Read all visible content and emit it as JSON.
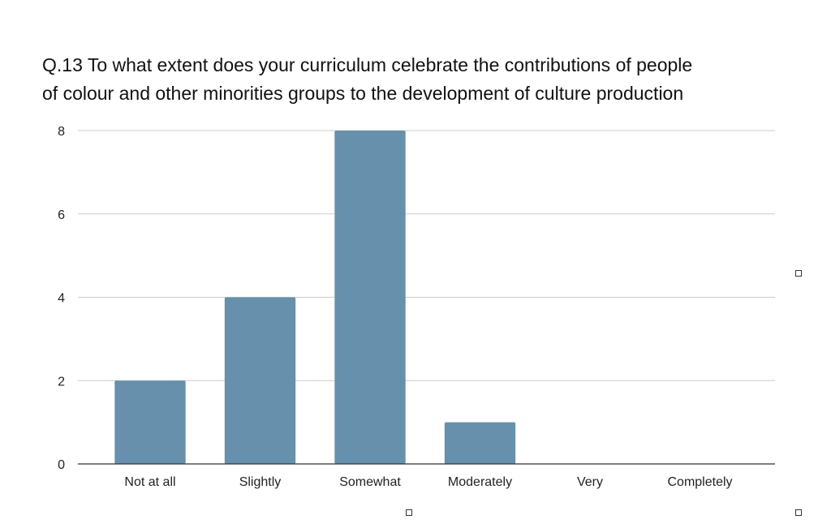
{
  "chart_data": {
    "type": "bar",
    "title_lines": [
      "Q.13 To what extent does your curriculum celebrate the contributions of people",
      "of colour and other minorities groups to the development of culture production"
    ],
    "categories": [
      "Not at all",
      "Slightly",
      "Somewhat",
      "Moderately",
      "Very",
      "Completely"
    ],
    "values": [
      2,
      4,
      8,
      1,
      0,
      0
    ],
    "ylim": [
      0,
      8
    ],
    "yticks": [
      0,
      2,
      4,
      6,
      8
    ],
    "grid": true,
    "legend": "none",
    "bar_color": "#6690ab"
  }
}
